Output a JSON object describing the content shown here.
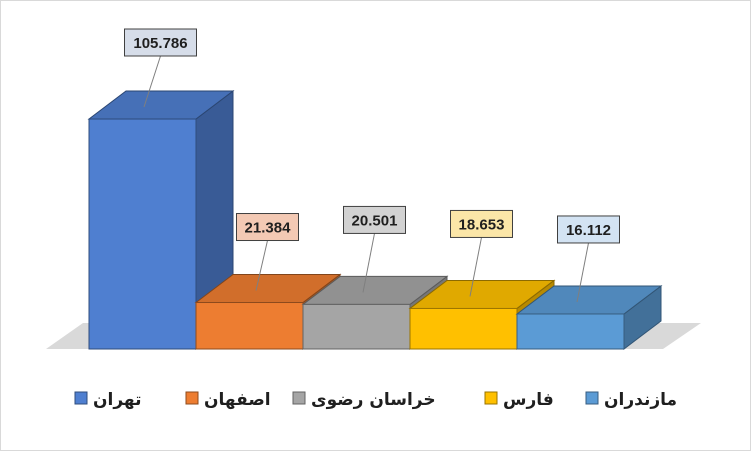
{
  "chart_data": {
    "type": "bar",
    "categories": [
      "تهران",
      "اصفهان",
      "خراسان رضوی",
      "فارس",
      "مازندران"
    ],
    "values": [
      105.786,
      21.384,
      20.501,
      18.653,
      16.112
    ],
    "value_labels": [
      "105.786",
      "21.384",
      "20.501",
      "18.653",
      "16.112"
    ],
    "colors": [
      "#4f7fd0",
      "#ed7d31",
      "#a5a5a5",
      "#ffc000",
      "#5b9bd5"
    ],
    "label_fills": [
      "#d6dde9",
      "#f3c9b4",
      "#d2d2d2",
      "#fbe6a8",
      "#d3e3f3"
    ],
    "ylim": [
      0,
      115
    ],
    "grid": false,
    "legend_position": "bottom",
    "style": "3d"
  }
}
